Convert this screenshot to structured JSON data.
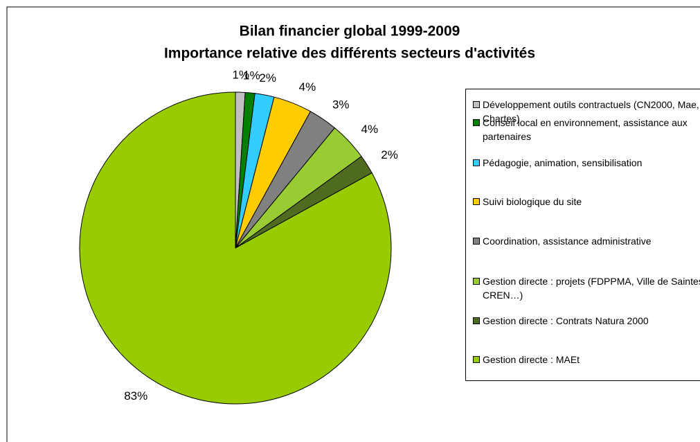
{
  "chart_data": {
    "type": "pie",
    "title": "Bilan financier global 1999-2009",
    "subtitle": "Importance relative des différents secteurs d'activités",
    "categories": [
      "Développement outils contractuels (CN2000, Mae, Chartes)",
      "Conseil local en environnement, assistance aux partenaires",
      "Pédagogie, animation, sensibilisation",
      "Suivi biologique du site",
      "Coordination, assistance administrative",
      "Gestion directe : projets (FDPPMA, Ville de Saintes, CREN…)",
      "Gestion directe : Contrats Natura 2000",
      "Gestion directe : MAEt"
    ],
    "values": [
      1,
      1,
      2,
      4,
      3,
      4,
      2,
      83
    ],
    "value_labels": [
      "1%",
      "1%",
      "2%",
      "4%",
      "3%",
      "4%",
      "2%",
      "83%"
    ],
    "colors": [
      "#c0c0c0",
      "#008000",
      "#33ccff",
      "#ffcc00",
      "#808080",
      "#99cc33",
      "#4f6b1f",
      "#99cc00"
    ],
    "legend": "right"
  }
}
